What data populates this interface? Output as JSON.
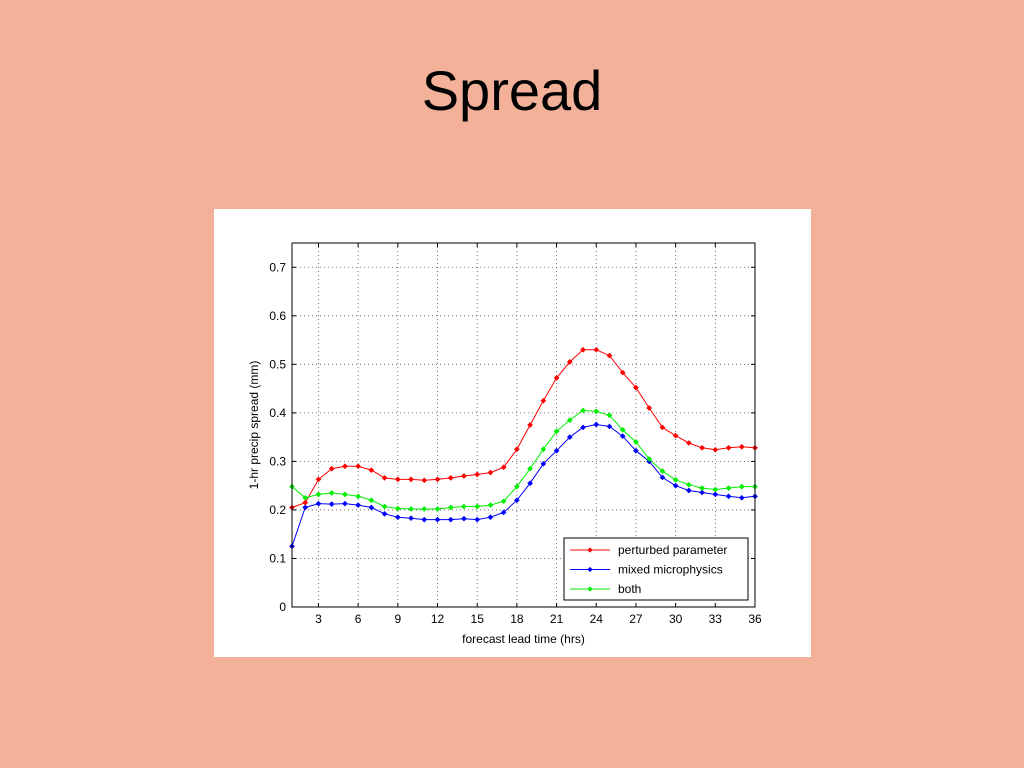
{
  "slide": {
    "title": "Spread"
  },
  "chart_data": {
    "type": "line",
    "title": "",
    "xlabel": "forecast lead time (hrs)",
    "ylabel": "1-hr precip spread (mm)",
    "xlim": [
      1,
      36
    ],
    "ylim": [
      0,
      0.75
    ],
    "xticks": [
      3,
      6,
      9,
      12,
      15,
      18,
      21,
      24,
      27,
      30,
      33,
      36
    ],
    "yticks": [
      0,
      0.1,
      0.2,
      0.3,
      0.4,
      0.5,
      0.6,
      0.7
    ],
    "ytick_labels": [
      "0",
      "0.1",
      "0.2",
      "0.3",
      "0.4",
      "0.5",
      "0.6",
      "0.7"
    ],
    "grid": true,
    "legend_position": "bottom-right",
    "x": [
      1,
      2,
      3,
      4,
      5,
      6,
      7,
      8,
      9,
      10,
      11,
      12,
      13,
      14,
      15,
      16,
      17,
      18,
      19,
      20,
      21,
      22,
      23,
      24,
      25,
      26,
      27,
      28,
      29,
      30,
      31,
      32,
      33,
      34,
      35,
      36
    ],
    "series": [
      {
        "name": "perturbed parameter",
        "color": "#ff0000",
        "values": [
          0.205,
          0.215,
          0.263,
          0.285,
          0.29,
          0.29,
          0.282,
          0.266,
          0.263,
          0.263,
          0.261,
          0.263,
          0.266,
          0.27,
          0.273,
          0.277,
          0.288,
          0.325,
          0.375,
          0.425,
          0.472,
          0.505,
          0.53,
          0.53,
          0.518,
          0.483,
          0.452,
          0.41,
          0.37,
          0.353,
          0.338,
          0.328,
          0.324,
          0.328,
          0.33,
          0.328
        ]
      },
      {
        "name": "mixed microphysics",
        "color": "#0000ff",
        "values": [
          0.125,
          0.205,
          0.213,
          0.212,
          0.213,
          0.21,
          0.205,
          0.192,
          0.185,
          0.183,
          0.18,
          0.18,
          0.18,
          0.182,
          0.18,
          0.185,
          0.195,
          0.22,
          0.255,
          0.295,
          0.322,
          0.35,
          0.37,
          0.376,
          0.372,
          0.352,
          0.322,
          0.3,
          0.267,
          0.25,
          0.24,
          0.236,
          0.232,
          0.228,
          0.225,
          0.228
        ]
      },
      {
        "name": "both",
        "color": "#00ee00",
        "values": [
          0.248,
          0.225,
          0.232,
          0.235,
          0.232,
          0.228,
          0.22,
          0.207,
          0.203,
          0.202,
          0.202,
          0.202,
          0.205,
          0.207,
          0.207,
          0.21,
          0.218,
          0.248,
          0.285,
          0.325,
          0.362,
          0.385,
          0.405,
          0.403,
          0.395,
          0.365,
          0.34,
          0.305,
          0.28,
          0.262,
          0.252,
          0.245,
          0.242,
          0.245,
          0.248,
          0.248
        ]
      }
    ]
  }
}
